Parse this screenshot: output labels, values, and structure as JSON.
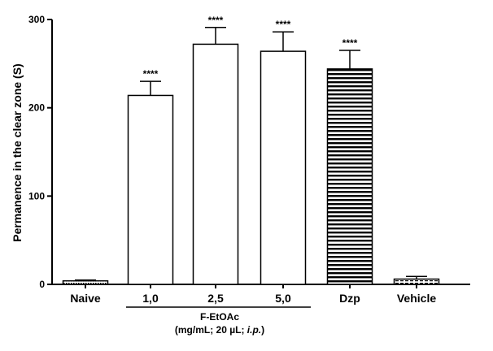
{
  "chart_data": {
    "type": "bar",
    "categories": [
      "Naive",
      "1,0",
      "2,5",
      "5,0",
      "Dzp",
      "Vehicle"
    ],
    "values": [
      4,
      214,
      272,
      264,
      244,
      6
    ],
    "errors": [
      1,
      16,
      19,
      22,
      21,
      3
    ],
    "significance": [
      "",
      "****",
      "****",
      "****",
      "****",
      ""
    ],
    "bar_styles": [
      "dotted",
      "white",
      "white",
      "white",
      "horizontal-stripes",
      "dashed-stripes"
    ],
    "ylabel": "Permanence in the clear zone (S)",
    "ylim": [
      0,
      300
    ],
    "yticks": [
      0,
      100,
      200,
      300
    ],
    "group_label": {
      "line1": "F-EtOAc",
      "line2_prefix": "(mg/mL; 20 µL; ",
      "line2_italic": "i.p.",
      "line2_suffix": ")",
      "spans": [
        "1,0",
        "2,5",
        "5,0"
      ]
    },
    "grid": false,
    "legend": "none"
  }
}
